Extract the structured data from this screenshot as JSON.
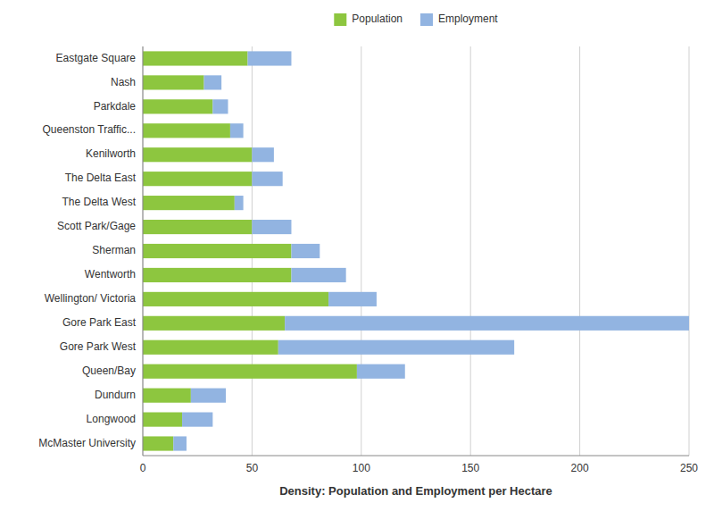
{
  "chart_data": {
    "type": "bar",
    "orientation": "horizontal",
    "stacked": true,
    "xlabel": "Density: Population and Employment per Hectare",
    "categories": [
      "Eastgate Square",
      "Nash",
      "Parkdale",
      "Queenston Traffic...",
      "Kenilworth",
      "The Delta East",
      "The Delta West",
      "Scott Park/Gage",
      "Sherman",
      "Wentworth",
      "Wellington/ Victoria",
      "Gore Park East",
      "Gore Park West",
      "Queen/Bay",
      "Dundurn",
      "Longwood",
      "McMaster University"
    ],
    "series": [
      {
        "name": "Population",
        "color": "#8dc63f",
        "values": [
          48,
          28,
          32,
          40,
          50,
          50,
          42,
          50,
          68,
          68,
          85,
          65,
          62,
          98,
          22,
          18,
          14
        ]
      },
      {
        "name": "Employment",
        "color": "#92b4e1",
        "values": [
          20,
          8,
          7,
          6,
          10,
          14,
          4,
          18,
          13,
          25,
          22,
          185,
          108,
          22,
          16,
          14,
          6
        ]
      }
    ],
    "xlim": [
      0,
      250
    ],
    "xticks": [
      0,
      50,
      100,
      150,
      200,
      250
    ],
    "grid": true,
    "legend": "top"
  }
}
